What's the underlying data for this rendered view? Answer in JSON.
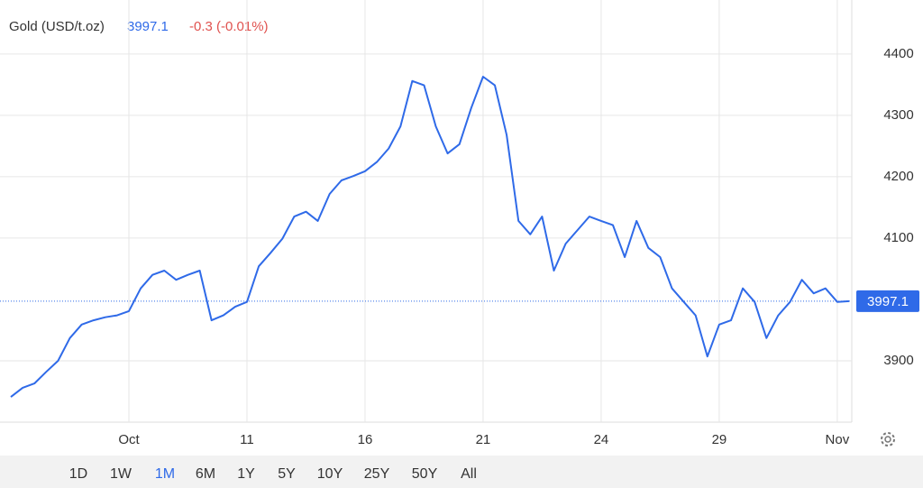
{
  "chart_data": {
    "type": "line",
    "title": "Gold (USD/t.oz)",
    "last_price": 3997.1,
    "change": "-0.3 (-0.01%)",
    "categories": [
      null,
      null,
      null,
      null,
      null,
      null,
      null,
      null,
      null,
      null,
      "Oct",
      null,
      null,
      null,
      null,
      null,
      null,
      null,
      null,
      null,
      "11",
      null,
      null,
      null,
      null,
      null,
      null,
      null,
      null,
      null,
      "16",
      null,
      null,
      null,
      null,
      null,
      null,
      null,
      null,
      null,
      "21",
      null,
      null,
      null,
      null,
      null,
      null,
      null,
      null,
      null,
      "24",
      null,
      null,
      null,
      null,
      null,
      null,
      null,
      null,
      null,
      "29",
      null,
      null,
      null,
      null,
      null,
      null,
      null,
      null,
      null,
      "Nov",
      null
    ],
    "series": [
      {
        "name": "Gold",
        "color": "#2f6ae8",
        "values": [
          3841,
          3856,
          3863,
          3882,
          3900,
          3937,
          3959,
          3966,
          3971,
          3974,
          3981,
          4018,
          4040,
          4047,
          4032,
          4040,
          4047,
          3966,
          3974,
          3988,
          3996,
          4054,
          4076,
          4099,
          4135,
          4143,
          4128,
          4172,
          4194,
          4201,
          4209,
          4224,
          4246,
          4282,
          4356,
          4349,
          4282,
          4238,
          4253,
          4312,
          4363,
          4349,
          4268,
          4128,
          4106,
          4135,
          4047,
          4091,
          4113,
          4135,
          4128,
          4121,
          4069,
          4128,
          4084,
          4069,
          4018,
          3996,
          3974,
          3907,
          3959,
          3966,
          4018,
          3996,
          3937,
          3974,
          3996,
          4032,
          4010,
          4018,
          3996,
          3997.1
        ]
      }
    ],
    "ylim": [
      3800,
      4488
    ],
    "yticks": [
      3900,
      4100,
      4200,
      4300,
      4400
    ],
    "grid": true,
    "ranges": [
      "1D",
      "1W",
      "1M",
      "6M",
      "1Y",
      "5Y",
      "10Y",
      "25Y",
      "50Y",
      "All"
    ],
    "selected_range": "1M"
  }
}
